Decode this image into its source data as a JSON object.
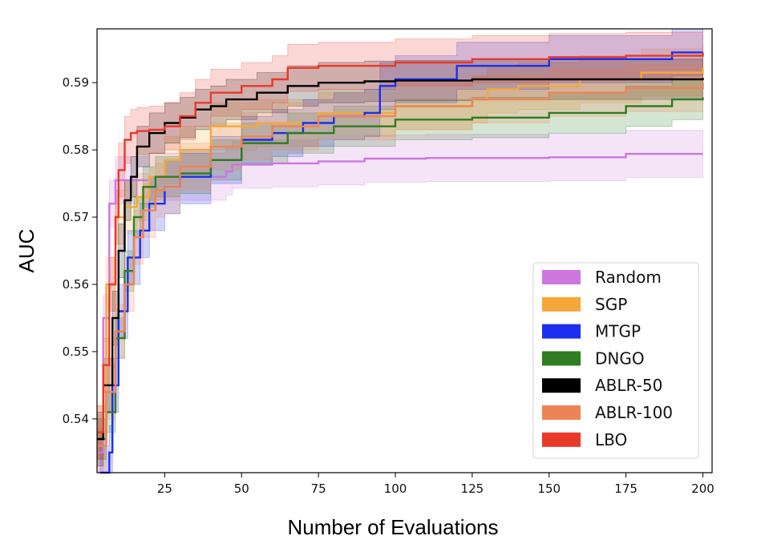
{
  "chart_data": {
    "type": "line",
    "title": "",
    "xlabel": "Number of Evaluations",
    "ylabel": "AUC",
    "xlim": [
      3,
      203
    ],
    "ylim": [
      0.532,
      0.598
    ],
    "xticks": [
      25,
      50,
      75,
      100,
      125,
      150,
      175,
      200
    ],
    "yticks": [
      0.54,
      0.55,
      0.56,
      0.57,
      0.58,
      0.59
    ],
    "grid": false,
    "legend_position": "bottom-right",
    "series": [
      {
        "name": "Random",
        "color": "#cc77dd",
        "x": [
          3,
          5,
          7,
          9,
          12,
          20,
          45,
          47,
          60,
          75,
          90,
          110,
          135,
          150,
          175,
          200
        ],
        "y": [
          0.535,
          0.555,
          0.572,
          0.5755,
          0.5755,
          0.576,
          0.5768,
          0.5778,
          0.578,
          0.5783,
          0.5787,
          0.5788,
          0.5788,
          0.5789,
          0.5794,
          0.5794
        ],
        "band": [
          0.0035,
          0.0035,
          0.0035,
          0.0035,
          0.0035,
          0.0035,
          0.0035,
          0.0035,
          0.0035,
          0.0035,
          0.0035,
          0.0035,
          0.0035,
          0.0035,
          0.0035,
          0.0035
        ]
      },
      {
        "name": "SGP",
        "color": "#f5a83a",
        "x": [
          3,
          6,
          9,
          12,
          16,
          20,
          25,
          30,
          40,
          55,
          75,
          100,
          125,
          130,
          140,
          160,
          180,
          200
        ],
        "y": [
          0.538,
          0.56,
          0.57,
          0.5715,
          0.573,
          0.576,
          0.5785,
          0.58,
          0.5835,
          0.584,
          0.5855,
          0.5865,
          0.5875,
          0.589,
          0.5895,
          0.5905,
          0.5915,
          0.5922
        ],
        "band": [
          0.004,
          0.004,
          0.004,
          0.004,
          0.0035,
          0.0035,
          0.0035,
          0.0035,
          0.0035,
          0.0035,
          0.0035,
          0.0035,
          0.0035,
          0.0035,
          0.0035,
          0.0035,
          0.0035,
          0.0035
        ]
      },
      {
        "name": "MTGP",
        "color": "#1a2ff0",
        "x": [
          4,
          6,
          7,
          8,
          10,
          13,
          17,
          20,
          25,
          30,
          40,
          50,
          60,
          70,
          80,
          90,
          95,
          100,
          120,
          150,
          175,
          190,
          200
        ],
        "y": [
          0.532,
          0.532,
          0.535,
          0.545,
          0.556,
          0.564,
          0.568,
          0.572,
          0.5745,
          0.576,
          0.5785,
          0.5815,
          0.5825,
          0.584,
          0.585,
          0.5855,
          0.5895,
          0.5905,
          0.5925,
          0.5935,
          0.5935,
          0.5945,
          0.5945
        ],
        "band": [
          0.004,
          0.004,
          0.004,
          0.004,
          0.004,
          0.004,
          0.004,
          0.004,
          0.004,
          0.004,
          0.0035,
          0.0035,
          0.0035,
          0.0035,
          0.0035,
          0.0035,
          0.0035,
          0.0035,
          0.0035,
          0.0035,
          0.0035,
          0.0035,
          0.0035
        ]
      },
      {
        "name": "DNGO",
        "color": "#2e7d22",
        "x": [
          3,
          6,
          9,
          12,
          15,
          18,
          22,
          30,
          40,
          50,
          65,
          80,
          100,
          125,
          150,
          175,
          190,
          200
        ],
        "y": [
          0.537,
          0.541,
          0.552,
          0.562,
          0.57,
          0.5745,
          0.576,
          0.5765,
          0.5785,
          0.581,
          0.5825,
          0.5835,
          0.5845,
          0.5848,
          0.5855,
          0.5865,
          0.5875,
          0.5878
        ],
        "band": [
          0.003,
          0.003,
          0.003,
          0.003,
          0.003,
          0.003,
          0.003,
          0.003,
          0.003,
          0.003,
          0.003,
          0.003,
          0.003,
          0.003,
          0.003,
          0.003,
          0.003,
          0.003
        ]
      },
      {
        "name": "ABLR-50",
        "color": "#000000",
        "x": [
          3,
          5,
          8,
          10,
          12,
          14,
          16,
          20,
          25,
          30,
          35,
          40,
          45,
          55,
          65,
          75,
          90,
          100,
          125,
          150,
          175,
          200
        ],
        "y": [
          0.537,
          0.545,
          0.555,
          0.565,
          0.5725,
          0.576,
          0.5805,
          0.5825,
          0.584,
          0.5848,
          0.586,
          0.5865,
          0.5875,
          0.5885,
          0.5895,
          0.59,
          0.5902,
          0.5903,
          0.5905,
          0.5905,
          0.5905,
          0.5907
        ],
        "band": [
          0.004,
          0.004,
          0.004,
          0.004,
          0.003,
          0.003,
          0.003,
          0.003,
          0.003,
          0.003,
          0.003,
          0.003,
          0.003,
          0.003,
          0.003,
          0.003,
          0.003,
          0.003,
          0.003,
          0.003,
          0.003,
          0.003
        ]
      },
      {
        "name": "ABLR-100",
        "color": "#ee8455",
        "x": [
          3,
          6,
          9,
          12,
          15,
          18,
          22,
          25,
          30,
          40,
          50,
          60,
          75,
          100,
          125,
          150,
          175,
          200
        ],
        "y": [
          0.536,
          0.544,
          0.553,
          0.56,
          0.567,
          0.571,
          0.574,
          0.5745,
          0.5775,
          0.5805,
          0.582,
          0.5835,
          0.585,
          0.5865,
          0.5875,
          0.5885,
          0.5892,
          0.59
        ],
        "band": [
          0.004,
          0.004,
          0.004,
          0.004,
          0.004,
          0.004,
          0.004,
          0.004,
          0.0035,
          0.0035,
          0.0035,
          0.0035,
          0.0035,
          0.0035,
          0.0035,
          0.0035,
          0.0035,
          0.0035
        ]
      },
      {
        "name": "LBO",
        "color": "#e8392b",
        "x": [
          3,
          5,
          7,
          9,
          10,
          12,
          14,
          16,
          20,
          25,
          30,
          35,
          40,
          50,
          60,
          65,
          75,
          100,
          125,
          150,
          175,
          200
        ],
        "y": [
          0.538,
          0.548,
          0.56,
          0.57,
          0.577,
          0.5815,
          0.5825,
          0.5828,
          0.583,
          0.5835,
          0.585,
          0.587,
          0.5885,
          0.5895,
          0.5905,
          0.5922,
          0.5925,
          0.593,
          0.5935,
          0.5938,
          0.594,
          0.5945
        ],
        "band": [
          0.004,
          0.004,
          0.004,
          0.004,
          0.004,
          0.0035,
          0.0035,
          0.0035,
          0.0035,
          0.0035,
          0.0035,
          0.0035,
          0.0035,
          0.0035,
          0.0035,
          0.0035,
          0.0035,
          0.0035,
          0.0035,
          0.0035,
          0.0035,
          0.0035
        ]
      }
    ]
  }
}
